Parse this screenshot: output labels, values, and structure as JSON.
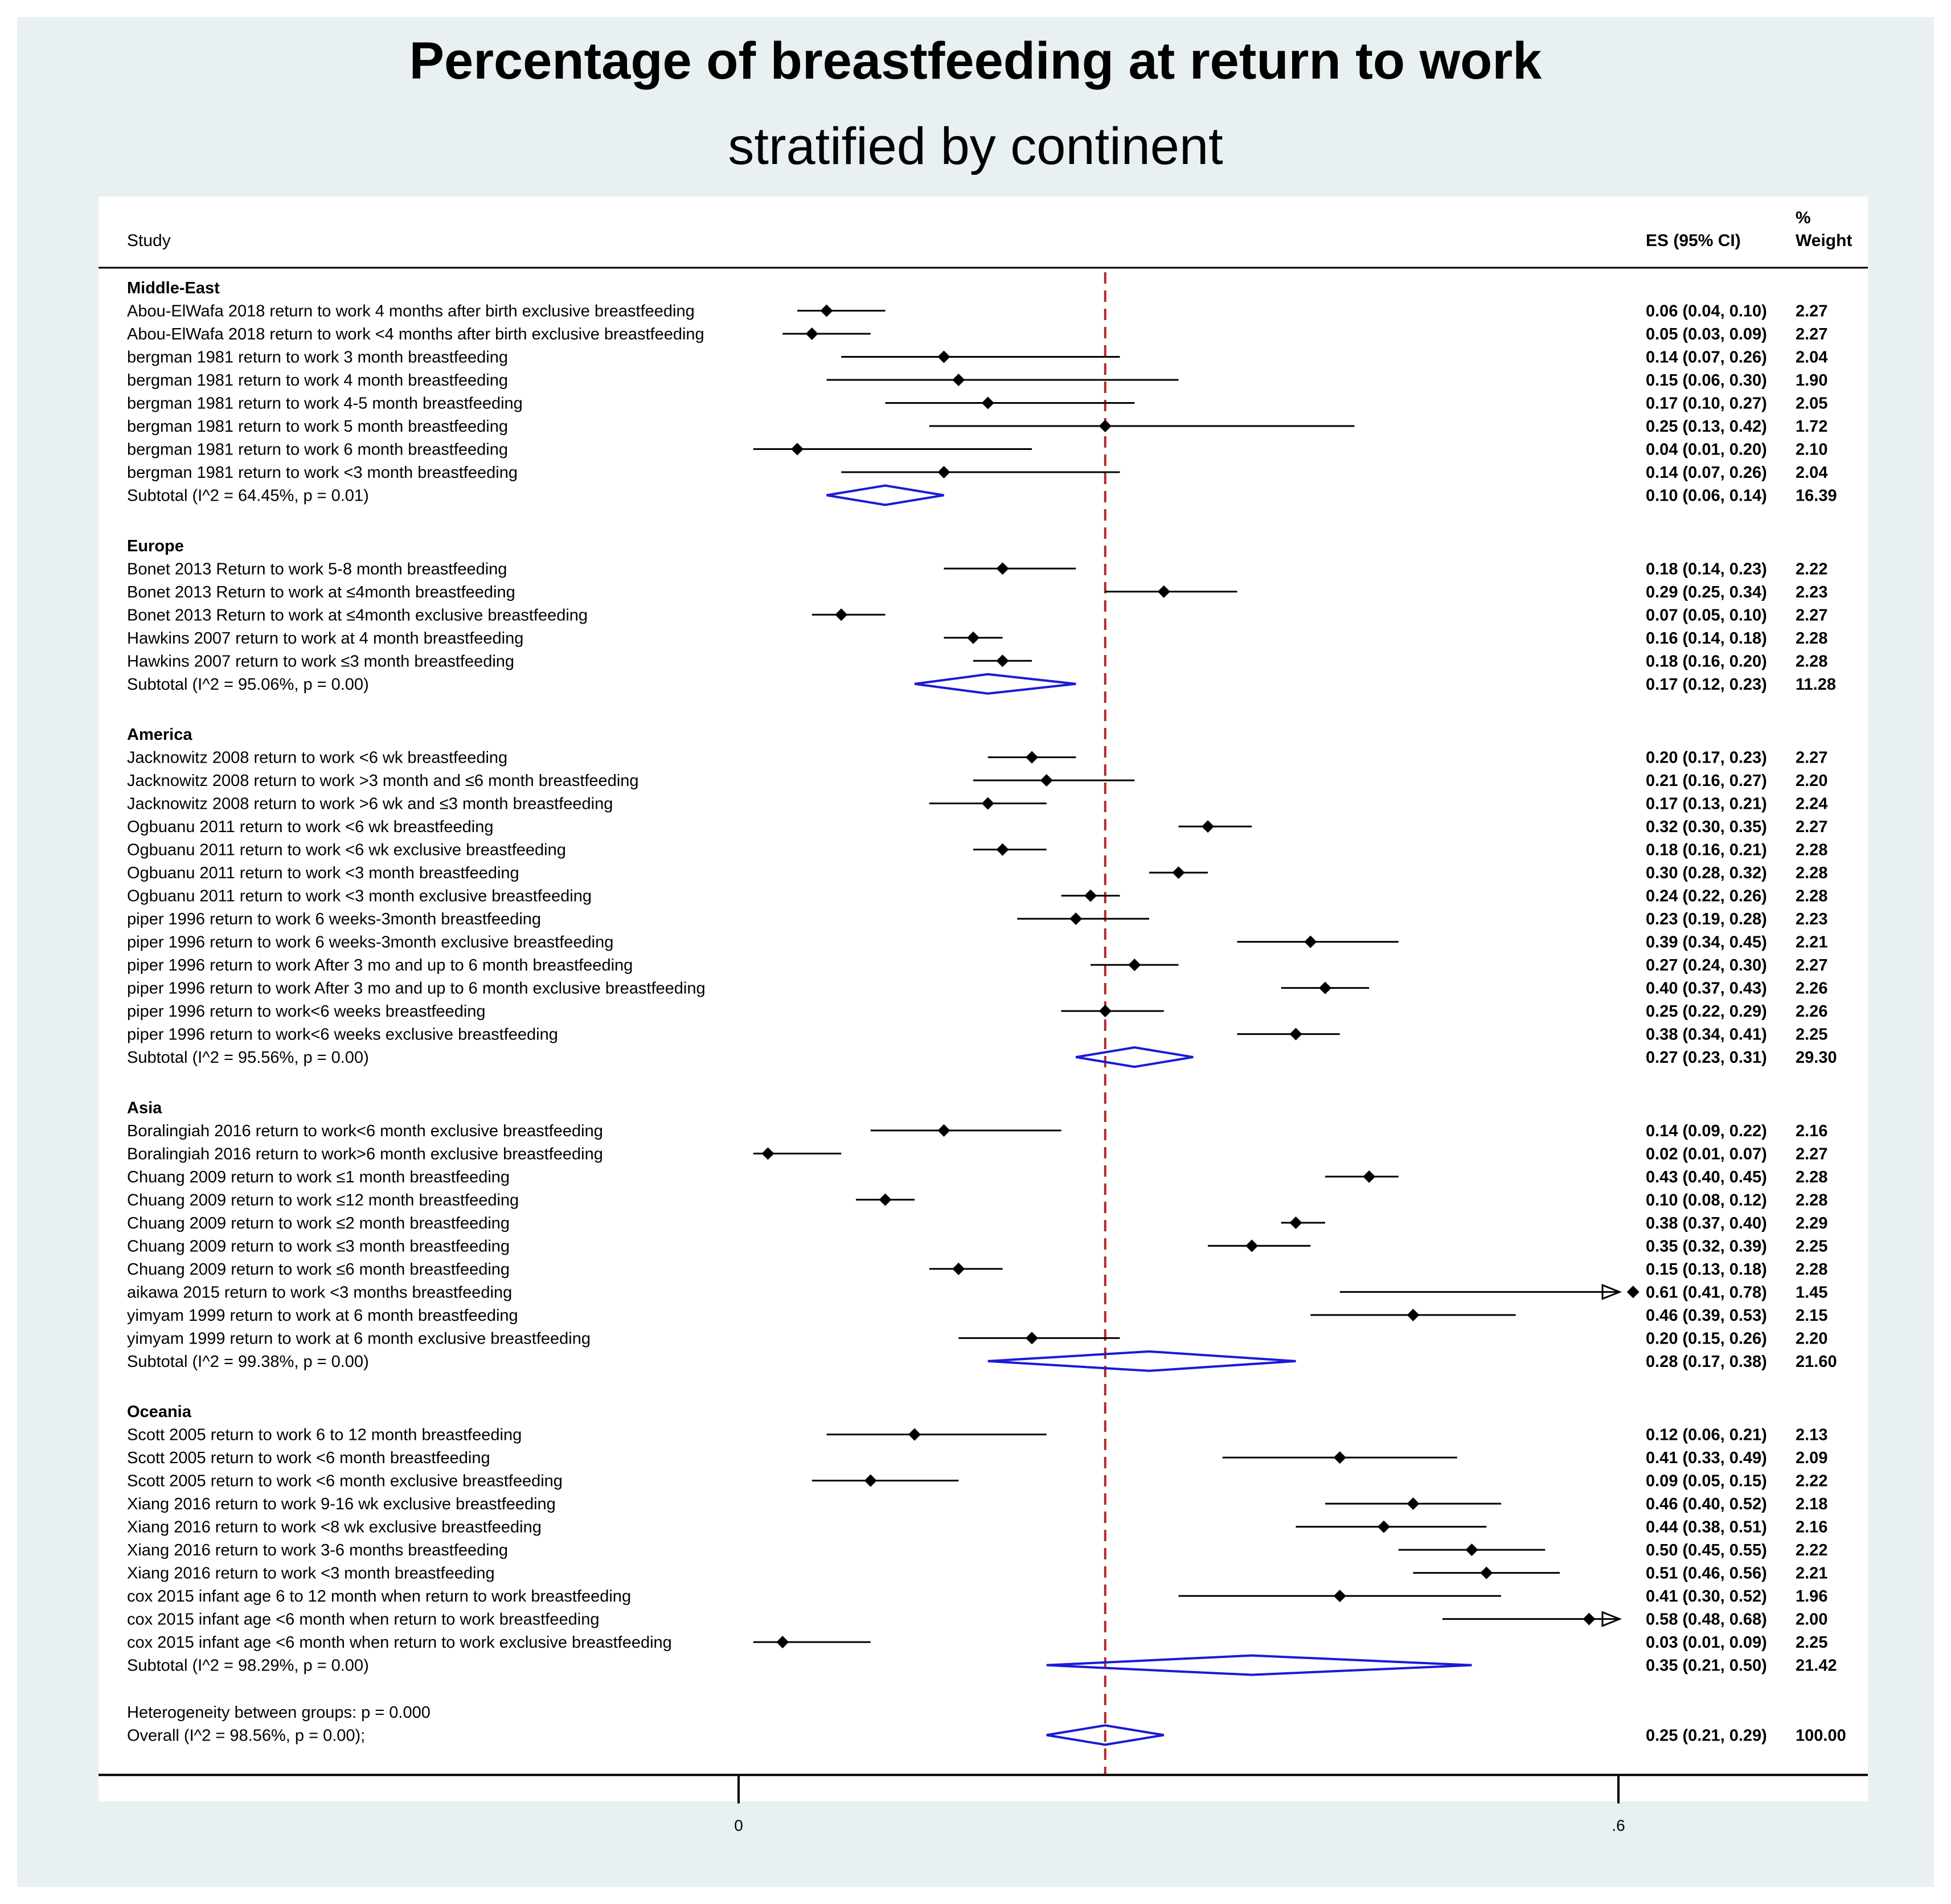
{
  "title": "Percentage of breastfeeding at return to work",
  "subtitle": "stratified by continent",
  "chart_data": {
    "type": "forest",
    "columns": {
      "study": "Study",
      "es": "ES (95% CI)",
      "weight_line1": "%",
      "weight_line2": "Weight"
    },
    "x_axis": {
      "ticks": [
        0,
        0.6
      ],
      "tick_labels": [
        "0",
        ".6"
      ],
      "range": [
        -0.02,
        0.6
      ]
    },
    "overall_line": 0.25,
    "groups": [
      {
        "name": "Middle-East",
        "studies": [
          {
            "label": "Abou-ElWafa 2018 return to work 4 months after birth exclusive breastfeeding",
            "es": 0.06,
            "lo": 0.04,
            "hi": 0.1,
            "es_text": "0.06 (0.04, 0.10)",
            "weight": "2.27"
          },
          {
            "label": "Abou-ElWafa 2018 return to work <4 months after birth exclusive breastfeeding",
            "es": 0.05,
            "lo": 0.03,
            "hi": 0.09,
            "es_text": "0.05 (0.03, 0.09)",
            "weight": "2.27"
          },
          {
            "label": "bergman 1981 return to work 3 month breastfeeding",
            "es": 0.14,
            "lo": 0.07,
            "hi": 0.26,
            "es_text": "0.14 (0.07, 0.26)",
            "weight": "2.04"
          },
          {
            "label": "bergman 1981 return to work 4 month breastfeeding",
            "es": 0.15,
            "lo": 0.06,
            "hi": 0.3,
            "es_text": "0.15 (0.06, 0.30)",
            "weight": "1.90"
          },
          {
            "label": "bergman 1981 return to work 4-5 month breastfeeding",
            "es": 0.17,
            "lo": 0.1,
            "hi": 0.27,
            "es_text": "0.17 (0.10, 0.27)",
            "weight": "2.05"
          },
          {
            "label": "bergman 1981 return to work 5 month breastfeeding",
            "es": 0.25,
            "lo": 0.13,
            "hi": 0.42,
            "es_text": "0.25 (0.13, 0.42)",
            "weight": "1.72"
          },
          {
            "label": "bergman 1981 return to work 6 month breastfeeding",
            "es": 0.04,
            "lo": 0.01,
            "hi": 0.2,
            "es_text": "0.04 (0.01, 0.20)",
            "weight": "2.10"
          },
          {
            "label": "bergman 1981 return to work <3 month breastfeeding",
            "es": 0.14,
            "lo": 0.07,
            "hi": 0.26,
            "es_text": "0.14 (0.07, 0.26)",
            "weight": "2.04"
          }
        ],
        "subtotal": {
          "label": "Subtotal  (I^2 = 64.45%, p = 0.01)",
          "es": 0.1,
          "lo": 0.06,
          "hi": 0.14,
          "es_text": "0.10 (0.06, 0.14)",
          "weight": "16.39"
        }
      },
      {
        "name": "Europe",
        "studies": [
          {
            "label": "Bonet 2013 Return to work 5-8 month breastfeeding",
            "es": 0.18,
            "lo": 0.14,
            "hi": 0.23,
            "es_text": "0.18 (0.14, 0.23)",
            "weight": "2.22"
          },
          {
            "label": "Bonet 2013 Return to work at ≤4month breastfeeding",
            "es": 0.29,
            "lo": 0.25,
            "hi": 0.34,
            "es_text": "0.29 (0.25, 0.34)",
            "weight": "2.23"
          },
          {
            "label": "Bonet 2013 Return to work at ≤4month exclusive breastfeeding",
            "es": 0.07,
            "lo": 0.05,
            "hi": 0.1,
            "es_text": "0.07 (0.05, 0.10)",
            "weight": "2.27"
          },
          {
            "label": "Hawkins 2007 return to work at 4 month breastfeeding",
            "es": 0.16,
            "lo": 0.14,
            "hi": 0.18,
            "es_text": "0.16 (0.14, 0.18)",
            "weight": "2.28"
          },
          {
            "label": "Hawkins 2007 return to work ≤3 month breastfeeding",
            "es": 0.18,
            "lo": 0.16,
            "hi": 0.2,
            "es_text": "0.18 (0.16, 0.20)",
            "weight": "2.28"
          }
        ],
        "subtotal": {
          "label": "Subtotal  (I^2 = 95.06%, p = 0.00)",
          "es": 0.17,
          "lo": 0.12,
          "hi": 0.23,
          "es_text": "0.17 (0.12, 0.23)",
          "weight": "11.28"
        }
      },
      {
        "name": "America",
        "studies": [
          {
            "label": "Jacknowitz 2008 return to work  <6 wk breastfeeding",
            "es": 0.2,
            "lo": 0.17,
            "hi": 0.23,
            "es_text": "0.20 (0.17, 0.23)",
            "weight": "2.27"
          },
          {
            "label": "Jacknowitz 2008 return to work >3 month and ≤6 month breastfeeding",
            "es": 0.21,
            "lo": 0.16,
            "hi": 0.27,
            "es_text": "0.21 (0.16, 0.27)",
            "weight": "2.20"
          },
          {
            "label": "Jacknowitz 2008 return to work >6 wk  and ≤3 month breastfeeding",
            "es": 0.17,
            "lo": 0.13,
            "hi": 0.21,
            "es_text": "0.17 (0.13, 0.21)",
            "weight": "2.24"
          },
          {
            "label": "Ogbuanu 2011 return to work  <6 wk breastfeeding",
            "es": 0.32,
            "lo": 0.3,
            "hi": 0.35,
            "es_text": "0.32 (0.30, 0.35)",
            "weight": "2.27"
          },
          {
            "label": "Ogbuanu 2011 return to work  <6 wk exclusive breastfeeding",
            "es": 0.18,
            "lo": 0.16,
            "hi": 0.21,
            "es_text": "0.18 (0.16, 0.21)",
            "weight": "2.28"
          },
          {
            "label": "Ogbuanu 2011 return to work <3 month breastfeeding",
            "es": 0.3,
            "lo": 0.28,
            "hi": 0.32,
            "es_text": "0.30 (0.28, 0.32)",
            "weight": "2.28"
          },
          {
            "label": "Ogbuanu 2011 return to work <3 month exclusive breastfeeding",
            "es": 0.24,
            "lo": 0.22,
            "hi": 0.26,
            "es_text": "0.24 (0.22, 0.26)",
            "weight": "2.28"
          },
          {
            "label": "piper 1996 return to work 6 weeks-3month breastfeeding",
            "es": 0.23,
            "lo": 0.19,
            "hi": 0.28,
            "es_text": "0.23 (0.19, 0.28)",
            "weight": "2.23"
          },
          {
            "label": "piper 1996 return to work 6 weeks-3month exclusive breastfeeding",
            "es": 0.39,
            "lo": 0.34,
            "hi": 0.45,
            "es_text": "0.39 (0.34, 0.45)",
            "weight": "2.21"
          },
          {
            "label": "piper 1996 return to work After 3 mo and up to 6 month breastfeeding",
            "es": 0.27,
            "lo": 0.24,
            "hi": 0.3,
            "es_text": "0.27 (0.24, 0.30)",
            "weight": "2.27"
          },
          {
            "label": "piper 1996 return to work After 3 mo and up to 6 month exclusive breastfeeding",
            "es": 0.4,
            "lo": 0.37,
            "hi": 0.43,
            "es_text": "0.40 (0.37, 0.43)",
            "weight": "2.26"
          },
          {
            "label": "piper 1996 return to work<6 weeks breastfeeding",
            "es": 0.25,
            "lo": 0.22,
            "hi": 0.29,
            "es_text": "0.25 (0.22, 0.29)",
            "weight": "2.26"
          },
          {
            "label": "piper 1996 return to work<6 weeks exclusive breastfeeding",
            "es": 0.38,
            "lo": 0.34,
            "hi": 0.41,
            "es_text": "0.38 (0.34, 0.41)",
            "weight": "2.25"
          }
        ],
        "subtotal": {
          "label": "Subtotal  (I^2 = 95.56%, p = 0.00)",
          "es": 0.27,
          "lo": 0.23,
          "hi": 0.31,
          "es_text": "0.27 (0.23, 0.31)",
          "weight": "29.30"
        }
      },
      {
        "name": "Asia",
        "studies": [
          {
            "label": "Boralingiah 2016 return to work<6 month exclusive breastfeeding",
            "es": 0.14,
            "lo": 0.09,
            "hi": 0.22,
            "es_text": "0.14 (0.09, 0.22)",
            "weight": "2.16"
          },
          {
            "label": "Boralingiah 2016 return to work>6 month exclusive breastfeeding",
            "es": 0.02,
            "lo": 0.01,
            "hi": 0.07,
            "es_text": "0.02 (0.01, 0.07)",
            "weight": "2.27"
          },
          {
            "label": "Chuang 2009 return to work  ≤1 month breastfeeding",
            "es": 0.43,
            "lo": 0.4,
            "hi": 0.45,
            "es_text": "0.43 (0.40, 0.45)",
            "weight": "2.28"
          },
          {
            "label": "Chuang 2009 return to work  ≤12 month breastfeeding",
            "es": 0.1,
            "lo": 0.08,
            "hi": 0.12,
            "es_text": "0.10 (0.08, 0.12)",
            "weight": "2.28"
          },
          {
            "label": "Chuang 2009 return to work  ≤2 month breastfeeding",
            "es": 0.38,
            "lo": 0.37,
            "hi": 0.4,
            "es_text": "0.38 (0.37, 0.40)",
            "weight": "2.29"
          },
          {
            "label": "Chuang 2009 return to work  ≤3 month breastfeeding",
            "es": 0.35,
            "lo": 0.32,
            "hi": 0.39,
            "es_text": "0.35 (0.32, 0.39)",
            "weight": "2.25"
          },
          {
            "label": "Chuang 2009 return to work  ≤6 month breastfeeding",
            "es": 0.15,
            "lo": 0.13,
            "hi": 0.18,
            "es_text": "0.15 (0.13, 0.18)",
            "weight": "2.28"
          },
          {
            "label": "aikawa 2015 return to work <3 months breastfeeding",
            "es": 0.61,
            "lo": 0.41,
            "hi": 0.78,
            "es_text": "0.61 (0.41, 0.78)",
            "weight": "1.45",
            "arrow": true
          },
          {
            "label": "yimyam 1999 return to work at 6 month breastfeeding",
            "es": 0.46,
            "lo": 0.39,
            "hi": 0.53,
            "es_text": "0.46 (0.39, 0.53)",
            "weight": "2.15"
          },
          {
            "label": "yimyam 1999 return to work at 6 month exclusive breastfeeding",
            "es": 0.2,
            "lo": 0.15,
            "hi": 0.26,
            "es_text": "0.20 (0.15, 0.26)",
            "weight": "2.20"
          }
        ],
        "subtotal": {
          "label": "Subtotal  (I^2 = 99.38%, p = 0.00)",
          "es": 0.28,
          "lo": 0.17,
          "hi": 0.38,
          "es_text": "0.28 (0.17, 0.38)",
          "weight": "21.60"
        }
      },
      {
        "name": "Oceania",
        "studies": [
          {
            "label": "Scott 2005 return to work  6 to 12 month  breastfeeding",
            "es": 0.12,
            "lo": 0.06,
            "hi": 0.21,
            "es_text": "0.12 (0.06, 0.21)",
            "weight": "2.13"
          },
          {
            "label": "Scott 2005 return to work  <6 month breastfeeding",
            "es": 0.41,
            "lo": 0.33,
            "hi": 0.49,
            "es_text": "0.41 (0.33, 0.49)",
            "weight": "2.09"
          },
          {
            "label": "Scott 2005 return to work  <6 month exclusive breastfeeding",
            "es": 0.09,
            "lo": 0.05,
            "hi": 0.15,
            "es_text": "0.09 (0.05, 0.15)",
            "weight": "2.22"
          },
          {
            "label": "Xiang 2016 return to work  9-16 wk exclusive breastfeeding",
            "es": 0.46,
            "lo": 0.4,
            "hi": 0.52,
            "es_text": "0.46 (0.40, 0.52)",
            "weight": "2.18"
          },
          {
            "label": "Xiang 2016 return to work  <8 wk exclusive breastfeeding",
            "es": 0.44,
            "lo": 0.38,
            "hi": 0.51,
            "es_text": "0.44 (0.38, 0.51)",
            "weight": "2.16"
          },
          {
            "label": "Xiang 2016 return to work 3-6 months  breastfeeding",
            "es": 0.5,
            "lo": 0.45,
            "hi": 0.55,
            "es_text": "0.50 (0.45, 0.55)",
            "weight": "2.22"
          },
          {
            "label": "Xiang 2016 return to work <3 month breastfeeding",
            "es": 0.51,
            "lo": 0.46,
            "hi": 0.56,
            "es_text": "0.51 (0.46, 0.56)",
            "weight": "2.21"
          },
          {
            "label": "cox 2015 infant age 6 to 12 month when return to work breastfeeding",
            "es": 0.41,
            "lo": 0.3,
            "hi": 0.52,
            "es_text": "0.41 (0.30, 0.52)",
            "weight": "1.96"
          },
          {
            "label": "cox 2015 infant age <6 month when return to work breastfeeding",
            "es": 0.58,
            "lo": 0.48,
            "hi": 0.68,
            "es_text": "0.58 (0.48, 0.68)",
            "weight": "2.00",
            "arrow": true
          },
          {
            "label": "cox 2015 infant age <6 month when return to work exclusive breastfeeding",
            "es": 0.03,
            "lo": 0.01,
            "hi": 0.09,
            "es_text": "0.03 (0.01, 0.09)",
            "weight": "2.25"
          }
        ],
        "subtotal": {
          "label": "Subtotal  (I^2 = 98.29%, p = 0.00)",
          "es": 0.35,
          "lo": 0.21,
          "hi": 0.5,
          "es_text": "0.35 (0.21, 0.50)",
          "weight": "21.42"
        }
      }
    ],
    "heterogeneity": "Heterogeneity between groups: p = 0.000",
    "overall": {
      "label": "Overall  (I^2 = 98.56%, p = 0.00);",
      "es": 0.25,
      "lo": 0.21,
      "hi": 0.29,
      "es_text": "0.25 (0.21, 0.29)",
      "weight": "100.00"
    }
  }
}
